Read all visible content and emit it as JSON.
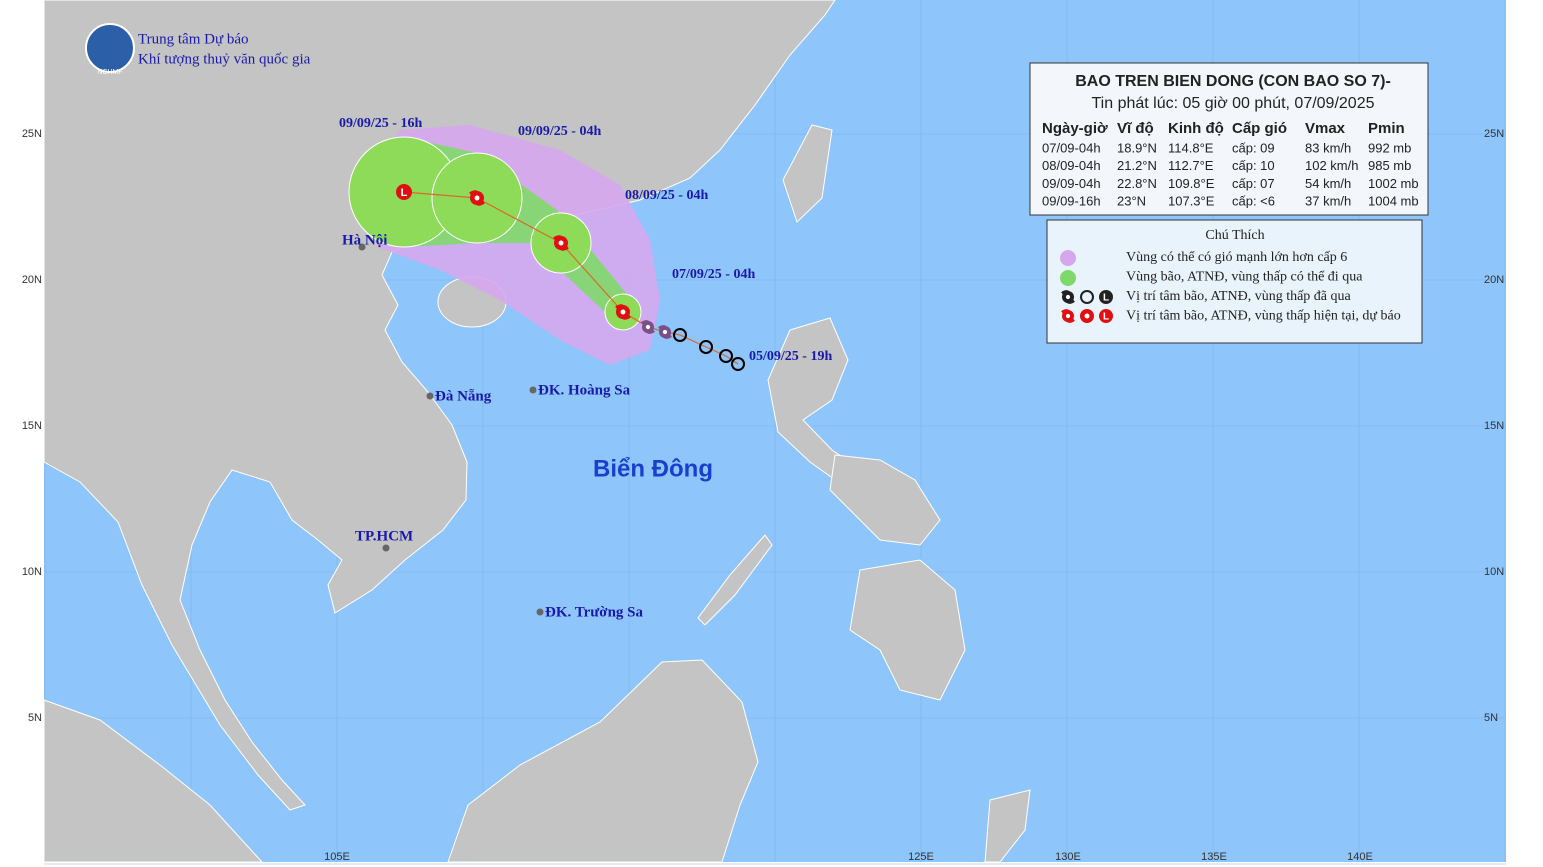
{
  "header": {
    "org_line1": "Trung tâm Dự báo",
    "org_line2": "Khí tượng thuỷ văn quốc gia",
    "logo_text": "NCHMF"
  },
  "bulletin": {
    "title": "BAO TREN BIEN DONG (CON BAO SO 7)-",
    "issued": "Tin phát lúc: 05 giờ 00 phút, 07/09/2025",
    "columns": [
      "Ngày-giờ",
      "Vĩ độ",
      "Kinh độ",
      "Cấp gió",
      "Vmax",
      "Pmin"
    ],
    "rows": [
      [
        "07/09-04h",
        "18.9°N",
        "114.8°E",
        "cấp: 09",
        "83 km/h",
        "992 mb"
      ],
      [
        "08/09-04h",
        "21.2°N",
        "112.7°E",
        "cấp: 10",
        "102 km/h",
        "985 mb"
      ],
      [
        "09/09-04h",
        "22.8°N",
        "109.8°E",
        "cấp: 07",
        "54 km/h",
        "1002 mb"
      ],
      [
        "09/09-16h",
        "23°N",
        "107.3°E",
        "cấp: <6",
        "37 km/h",
        "1004 mb"
      ]
    ]
  },
  "legend": {
    "title": "Chú Thích",
    "items": [
      "Vùng có thể có gió mạnh lớn hơn cấp 6",
      "Vùng bão, ATNĐ, vùng thấp có thể đi qua",
      "Vị trí tâm bão, ATNĐ, vùng thấp đã qua",
      "Vị trí tâm bão, ATNĐ, vùng thấp hiện tại, dự báo"
    ]
  },
  "low_symbol": "L",
  "track_labels": [
    "09/09/25 - 16h",
    "09/09/25 - 04h",
    "08/09/25 - 04h",
    "07/09/25 - 04h",
    "05/09/25 - 19h"
  ],
  "places": [
    "Hà Nội",
    "Đà Nẵng",
    "ĐK. Hoàng Sa",
    "TP.HCM",
    "ĐK. Trường Sa"
  ],
  "sea_label": "Biển Đông",
  "lat_labels": [
    "25N",
    "20N",
    "15N",
    "10N",
    "5N"
  ],
  "lon_labels": [
    "105E",
    "125E",
    "130E",
    "135E",
    "140E"
  ]
}
